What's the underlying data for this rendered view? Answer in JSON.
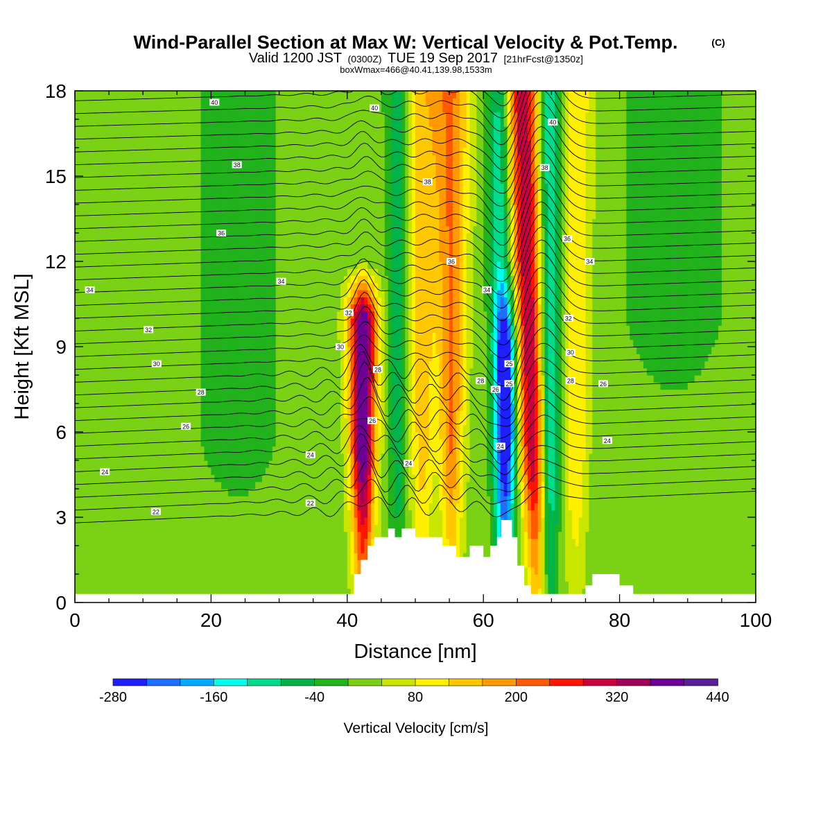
{
  "chart_data": {
    "type": "heatmap",
    "title": "Wind-Parallel Section at Max W: Vertical Velocity & Pot.Temp.",
    "title_copyright": "(C)",
    "subtitle_main": "Valid 1200 JST",
    "subtitle_z": "(0300Z)",
    "subtitle_date": "TUE 19 Sep 2017",
    "subtitle_fcst": "[21hrFcst@1350z]",
    "box_text": "boxWmax=466@40.41,139.98,1533m",
    "xlabel": "Distance [nm]",
    "ylabel": "Height [Kft MSL]",
    "xlim": [
      0,
      100
    ],
    "ylim": [
      0,
      18
    ],
    "x_ticks": [
      "0",
      "20",
      "40",
      "60",
      "80",
      "100"
    ],
    "y_ticks": [
      "0",
      "3",
      "6",
      "9",
      "12",
      "15",
      "18"
    ],
    "colorbar": {
      "label": "Vertical Velocity [cm/s]",
      "tick_labels": [
        "-280",
        "-160",
        "-40",
        "80",
        "200",
        "320",
        "440"
      ],
      "levels": [
        -280,
        -240,
        -200,
        -160,
        -120,
        -80,
        -40,
        0,
        40,
        80,
        120,
        160,
        200,
        240,
        280,
        320,
        360,
        400,
        440
      ],
      "colors": [
        "#1e1eff",
        "#1e6eff",
        "#00aaff",
        "#00ffee",
        "#00dc8c",
        "#00b44a",
        "#21b21c",
        "#7bd115",
        "#c8e600",
        "#fff000",
        "#ffc800",
        "#ff9b00",
        "#ff5a00",
        "#ff1400",
        "#c8003c",
        "#a0005a",
        "#6e0096",
        "#5a1e96"
      ]
    },
    "background_w": 20,
    "updrafts": [
      {
        "x_center": 42.3,
        "w_max": 380,
        "z_top": 10
      },
      {
        "x_center": 66.8,
        "w_max": 300,
        "z_top": 18
      },
      {
        "x_center": 55.3,
        "w_max": 180,
        "z_top": 18
      },
      {
        "x_center": 51.0,
        "w_max": 120,
        "z_top": 18
      },
      {
        "x_center": 73.5,
        "w_max": 100,
        "z_top": 18
      }
    ],
    "downdrafts": [
      {
        "x_center": 63.5,
        "w_min": -240,
        "z_top": 9
      },
      {
        "x_center": 69.8,
        "w_min": -180,
        "z_top": 18
      },
      {
        "x_center": 62.5,
        "w_min": -150,
        "z_top": 18
      },
      {
        "x_center": 47.5,
        "w_min": -90,
        "z_top": 18
      }
    ],
    "terrain": [
      [
        0,
        0.3
      ],
      [
        41,
        0.3
      ],
      [
        41,
        1.0
      ],
      [
        42,
        1.0
      ],
      [
        42,
        1.5
      ],
      [
        43,
        1.5
      ],
      [
        43,
        2.0
      ],
      [
        44,
        2.0
      ],
      [
        44,
        2.3
      ],
      [
        46,
        2.3
      ],
      [
        46,
        2.6
      ],
      [
        47,
        2.6
      ],
      [
        47,
        2.3
      ],
      [
        48,
        2.3
      ],
      [
        48,
        2.6
      ],
      [
        50,
        2.6
      ],
      [
        50,
        2.3
      ],
      [
        54,
        2.3
      ],
      [
        54,
        2.0
      ],
      [
        56,
        2.0
      ],
      [
        56,
        1.6
      ],
      [
        58,
        1.6
      ],
      [
        58,
        2.0
      ],
      [
        60,
        2.0
      ],
      [
        60,
        1.6
      ],
      [
        61,
        1.6
      ],
      [
        61,
        2.0
      ],
      [
        62,
        2.0
      ],
      [
        62,
        2.3
      ],
      [
        62.6,
        2.3
      ],
      [
        62.6,
        2.9
      ],
      [
        64.2,
        2.9
      ],
      [
        64.2,
        2.3
      ],
      [
        65,
        2.3
      ],
      [
        65,
        1.3
      ],
      [
        66,
        1.3
      ],
      [
        66,
        0.6
      ],
      [
        67,
        0.6
      ],
      [
        67,
        0.3
      ],
      [
        75,
        0.3
      ],
      [
        75,
        0.6
      ],
      [
        76,
        0.6
      ],
      [
        76,
        1.0
      ],
      [
        80,
        1.0
      ],
      [
        80,
        0.6
      ],
      [
        82,
        0.6
      ],
      [
        82,
        0.3
      ],
      [
        100,
        0.3
      ]
    ],
    "theta_contours": {
      "levels": [
        22,
        24,
        26,
        28,
        30,
        32,
        34,
        36,
        38,
        40
      ],
      "labels": [
        {
          "text": "40",
          "x": 20.5,
          "z": 17.6
        },
        {
          "text": "40",
          "x": 44.0,
          "z": 17.4
        },
        {
          "text": "40",
          "x": 70.2,
          "z": 16.9
        },
        {
          "text": "38",
          "x": 23.8,
          "z": 15.4
        },
        {
          "text": "38",
          "x": 51.8,
          "z": 14.8
        },
        {
          "text": "38",
          "x": 69.0,
          "z": 15.3
        },
        {
          "text": "36",
          "x": 21.5,
          "z": 13.0
        },
        {
          "text": "36",
          "x": 55.3,
          "z": 12.0
        },
        {
          "text": "36",
          "x": 72.3,
          "z": 12.8
        },
        {
          "text": "34",
          "x": 2.2,
          "z": 11.0
        },
        {
          "text": "34",
          "x": 30.3,
          "z": 11.3
        },
        {
          "text": "34",
          "x": 60.5,
          "z": 11.0
        },
        {
          "text": "34",
          "x": 75.6,
          "z": 12.0
        },
        {
          "text": "32",
          "x": 10.8,
          "z": 9.6
        },
        {
          "text": "32",
          "x": 40.2,
          "z": 10.2
        },
        {
          "text": "32",
          "x": 72.5,
          "z": 10.0
        },
        {
          "text": "30",
          "x": 12.0,
          "z": 8.4
        },
        {
          "text": "30",
          "x": 39.0,
          "z": 9.0
        },
        {
          "text": "30",
          "x": 72.8,
          "z": 8.8
        },
        {
          "text": "28",
          "x": 18.5,
          "z": 7.4
        },
        {
          "text": "28",
          "x": 44.5,
          "z": 8.2
        },
        {
          "text": "28",
          "x": 59.6,
          "z": 7.8
        },
        {
          "text": "28",
          "x": 72.8,
          "z": 7.8
        },
        {
          "text": "26",
          "x": 16.3,
          "z": 6.2
        },
        {
          "text": "26",
          "x": 61.8,
          "z": 7.5
        },
        {
          "text": "26",
          "x": 77.6,
          "z": 7.7
        },
        {
          "text": "26",
          "x": 43.7,
          "z": 6.4
        },
        {
          "text": "25",
          "x": 63.8,
          "z": 8.4
        },
        {
          "text": "25",
          "x": 63.8,
          "z": 7.7
        },
        {
          "text": "24",
          "x": 4.4,
          "z": 4.6
        },
        {
          "text": "24",
          "x": 34.6,
          "z": 5.2
        },
        {
          "text": "24",
          "x": 49.0,
          "z": 4.9
        },
        {
          "text": "24",
          "x": 62.5,
          "z": 5.5
        },
        {
          "text": "24",
          "x": 78.2,
          "z": 5.7
        },
        {
          "text": "22",
          "x": 11.9,
          "z": 3.2
        },
        {
          "text": "22",
          "x": 34.6,
          "z": 3.5
        }
      ]
    }
  }
}
